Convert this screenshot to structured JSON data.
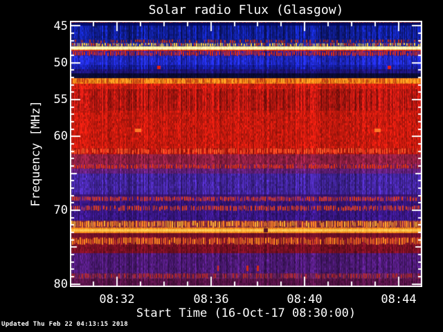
{
  "title": "Solar radio Flux (Glasgow)",
  "x_axis": {
    "label": "Start Time (16-Oct-17 08:30:00)",
    "ticks": [
      "08:32",
      "08:36",
      "08:40",
      "08:44"
    ]
  },
  "y_axis": {
    "label": "Frequency [MHz]",
    "ticks": [
      "45",
      "50",
      "55",
      "60",
      "70",
      "80"
    ]
  },
  "footer": {
    "updated_text": "Updated Thu Feb 22 04:13:15 2018"
  },
  "colors": {
    "background": "#000000",
    "frame": "#ffffff",
    "text": "#ffffff"
  },
  "chart_data": {
    "type": "heatmap",
    "title": "Solar radio Flux (Glasgow)",
    "xlabel": "Start Time (16-Oct-17 08:30:00)",
    "ylabel": "Frequency [MHz]",
    "x_range": [
      "08:30",
      "08:45"
    ],
    "x_total_minutes": 15,
    "x_major_tick_minutes": [
      2,
      6,
      10,
      14
    ],
    "x_minor_every_minutes": 1,
    "y_range_mhz": [
      44.3,
      80.42
    ],
    "y_major_ticks_mhz": [
      45,
      50,
      55,
      60,
      70,
      80
    ],
    "y_medium_ticks_mhz": [
      65,
      75
    ],
    "grid": false,
    "legend": "none",
    "bands": [
      {
        "f0": 44.3,
        "f1": 44.58,
        "style": "dashes",
        "base": "#3c0a1e",
        "dash": "#c32818",
        "density": 0.45,
        "streak": 0.2
      },
      {
        "f0": 44.58,
        "f1": 44.96,
        "style": "solid",
        "base": "#000a64",
        "streak": 0.15
      },
      {
        "f0": 44.96,
        "f1": 46.83,
        "style": "noise",
        "base": "#101e96",
        "streak": 0.55
      },
      {
        "f0": 46.83,
        "f1": 47.3,
        "style": "dashes",
        "base": "#141e8c",
        "dash": "#c33214",
        "density": 0.3,
        "streak": 0.35
      },
      {
        "f0": 47.3,
        "f1": 47.77,
        "style": "dashes",
        "base": "#1e28a0",
        "dash": "#ffd23c",
        "dash2": "#dc3c14",
        "density": 0.75,
        "streak": 0.3
      },
      {
        "f0": 47.77,
        "f1": 48.24,
        "style": "line",
        "base": "#ffe878",
        "core": "#fffbdc",
        "sparkle": "#ffffff",
        "streak": 0.12
      },
      {
        "f0": 48.24,
        "f1": 48.43,
        "style": "solid",
        "base": "#c8281e",
        "streak": 0.2
      },
      {
        "f0": 48.43,
        "f1": 49.09,
        "style": "dashes",
        "base": "#1c1ea8",
        "dash": "#e12e10",
        "density": 0.8,
        "streak": 0.3
      },
      {
        "f0": 49.09,
        "f1": 50.31,
        "style": "noise",
        "base": "#1e28c8",
        "streak": 0.4
      },
      {
        "f0": 50.31,
        "f1": 50.87,
        "style": "noise",
        "base": "#161ea6",
        "streak": 0.35
      },
      {
        "f0": 50.87,
        "f1": 51.43,
        "style": "noise",
        "base": "#1c1478",
        "streak": 0.3
      },
      {
        "f0": 51.43,
        "f1": 52.09,
        "style": "noise",
        "base": "#0a0a35",
        "streak": 0.3
      },
      {
        "f0": 52.09,
        "f1": 52.84,
        "style": "dashes",
        "base": "#f07614",
        "dash": "#ffaa28",
        "dash2": "#c33c14",
        "density": 0.5,
        "streak": 0.15
      },
      {
        "f0": 52.84,
        "f1": 53.59,
        "style": "noise",
        "base": "#d21e10",
        "streak": 0.2
      },
      {
        "f0": 53.59,
        "f1": 56.5,
        "style": "noise",
        "base": "#b41710",
        "streak": 0.4
      },
      {
        "f0": 56.5,
        "f1": 61.57,
        "style": "noise",
        "base": "#c81a0e",
        "streak": 0.18
      },
      {
        "f0": 61.57,
        "f1": 62.41,
        "style": "dashes",
        "base": "#b41710",
        "dash": "#ff5a28",
        "density": 0.55,
        "streak": 0.2
      },
      {
        "f0": 62.41,
        "f1": 63.72,
        "style": "noise",
        "base": "#8c1e41",
        "streak": 0.25
      },
      {
        "f0": 63.72,
        "f1": 64.38,
        "style": "dashes",
        "base": "#781e55",
        "dash": "#e13214",
        "density": 0.55,
        "streak": 0.25
      },
      {
        "f0": 64.38,
        "f1": 65.04,
        "style": "noise",
        "base": "#5f1e78",
        "streak": 0.25
      },
      {
        "f0": 65.04,
        "f1": 67.85,
        "style": "noise",
        "base": "#41249b",
        "streak": 0.35
      },
      {
        "f0": 67.85,
        "f1": 68.13,
        "style": "solid",
        "base": "#37146e",
        "streak": 0.2
      },
      {
        "f0": 68.13,
        "f1": 68.79,
        "style": "dashes",
        "base": "#46197d",
        "dash": "#e13c1e",
        "density": 0.6,
        "streak": 0.25
      },
      {
        "f0": 68.79,
        "f1": 69.35,
        "style": "noise",
        "base": "#321478",
        "streak": 0.25
      },
      {
        "f0": 69.35,
        "f1": 70.1,
        "style": "dashes",
        "base": "#3c1678",
        "dash": "#e1411e",
        "density": 0.6,
        "streak": 0.25
      },
      {
        "f0": 70.1,
        "f1": 71.42,
        "style": "noise",
        "base": "#371682",
        "streak": 0.3
      },
      {
        "f0": 71.42,
        "f1": 72.35,
        "style": "dashes",
        "base": "#82283c",
        "dash": "#ff8c1e",
        "dash2": "#ffb432",
        "density": 0.7,
        "streak": 0.2
      },
      {
        "f0": 72.35,
        "f1": 73.1,
        "style": "line",
        "base": "#f5881a",
        "core": "#ffd25a",
        "sparkle": "#ffe87a",
        "streak": 0.15
      },
      {
        "f0": 73.1,
        "f1": 73.67,
        "style": "solid",
        "base": "#6e0f28",
        "streak": 0.2
      },
      {
        "f0": 73.67,
        "f1": 74.7,
        "style": "dashes",
        "base": "#821428",
        "dash": "#ff8c1e",
        "dash2": "#e65a1e",
        "density": 0.7,
        "streak": 0.2
      },
      {
        "f0": 74.7,
        "f1": 75.82,
        "style": "noise",
        "base": "#780f23",
        "streak": 0.25
      },
      {
        "f0": 75.82,
        "f1": 78.55,
        "style": "noise",
        "base": "#4b1973",
        "streak": 0.35
      },
      {
        "f0": 78.55,
        "f1": 79.3,
        "style": "dashes",
        "base": "#5f1e5a",
        "dash": "#b42828",
        "density": 0.35,
        "streak": 0.3
      },
      {
        "f0": 79.3,
        "f1": 80.42,
        "style": "noise",
        "base": "#551246",
        "streak": 0.3
      }
    ],
    "events": [
      {
        "time_min": 3.8,
        "f": 50.6,
        "w": 5,
        "h": 5,
        "color": "#e11e14"
      },
      {
        "time_min": 13.6,
        "f": 50.6,
        "w": 5,
        "h": 5,
        "color": "#e11e14"
      },
      {
        "time_min": 2.9,
        "f": 59.2,
        "w": 9,
        "h": 5,
        "color": "#ff7828"
      },
      {
        "time_min": 13.1,
        "f": 59.2,
        "w": 9,
        "h": 5,
        "color": "#ff7828"
      },
      {
        "time_min": 8.35,
        "f": 72.72,
        "w": 6,
        "h": 6,
        "color": "#5a1428"
      },
      {
        "time_min": 6.3,
        "f": 77.9,
        "w": 2,
        "h": 8,
        "color": "#d42814"
      },
      {
        "time_min": 7.55,
        "f": 77.9,
        "w": 3,
        "h": 8,
        "color": "#d42814"
      },
      {
        "time_min": 8.0,
        "f": 77.9,
        "w": 3,
        "h": 8,
        "color": "#d42814"
      }
    ]
  }
}
